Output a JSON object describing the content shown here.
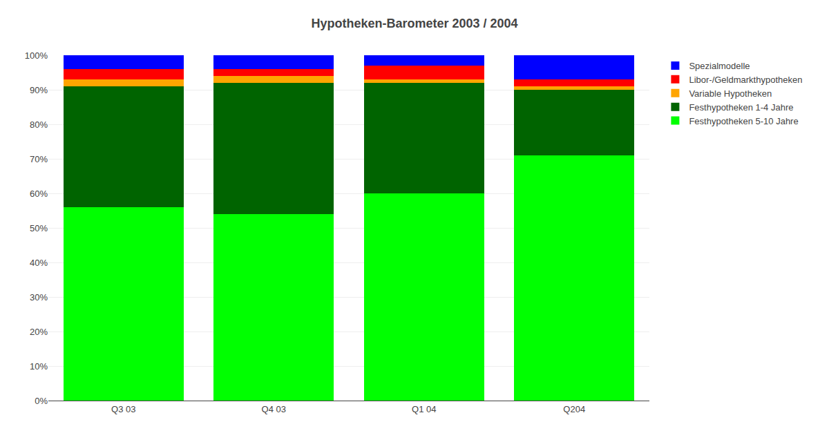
{
  "chart_data": {
    "type": "bar",
    "stacked": true,
    "title": "Hypotheken-Barometer 2003 / 2004",
    "categories": [
      "Q3 03",
      "Q4 03",
      "Q1 04",
      "Q204"
    ],
    "series": [
      {
        "name": "Festhypotheken 5-10 Jahre",
        "color": "#00FF00",
        "values": [
          56,
          54,
          60,
          71
        ]
      },
      {
        "name": "Festhypotheken 1-4 Jahre",
        "color": "#006400",
        "values": [
          35,
          38,
          32,
          19
        ]
      },
      {
        "name": "Variable Hypotheken",
        "color": "#FFA500",
        "values": [
          2,
          2,
          1,
          1
        ]
      },
      {
        "name": "Libor-/Geldmarkthypotheken",
        "color": "#FF0000",
        "values": [
          3,
          2,
          4,
          2
        ]
      },
      {
        "name": "Spezialmodelle",
        "color": "#0000FF",
        "values": [
          4,
          4,
          3,
          7
        ]
      }
    ],
    "ylim": [
      0,
      100
    ],
    "yticks": [
      {
        "value": 0,
        "label": "0%"
      },
      {
        "value": 10,
        "label": "10%"
      },
      {
        "value": 20,
        "label": "20%"
      },
      {
        "value": 30,
        "label": "30%"
      },
      {
        "value": 40,
        "label": "40%"
      },
      {
        "value": 50,
        "label": "50%"
      },
      {
        "value": 60,
        "label": "60%"
      },
      {
        "value": 70,
        "label": "70%"
      },
      {
        "value": 80,
        "label": "80%"
      },
      {
        "value": 90,
        "label": "90%"
      },
      {
        "value": 100,
        "label": "100%"
      }
    ],
    "grid": true,
    "legend": "right"
  }
}
